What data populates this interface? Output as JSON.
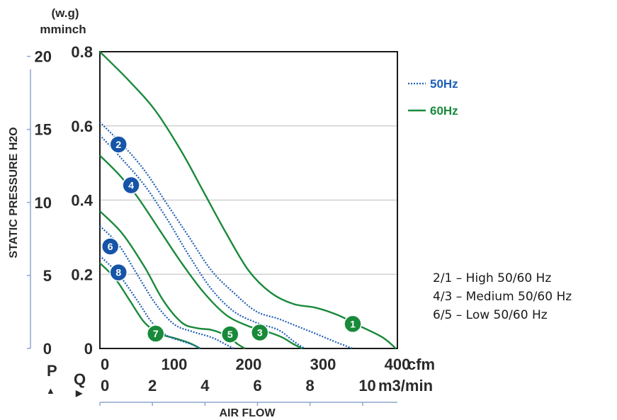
{
  "colors": {
    "hz50": "#1f5fb6",
    "hz60": "#1a8a3c",
    "badge50": "#1654a8",
    "badge60": "#188a3a",
    "grid": "#c8c8c8",
    "axis": "#8ea6cc"
  },
  "legend": {
    "hz50": "50Hz",
    "hz60": "60Hz"
  },
  "notes": [
    "2/1 – High 50/60 Hz",
    "4/3 – Medium 50/60 Hz",
    "6/5 – Low 50/60 Hz"
  ],
  "labels": {
    "unit_wg": "(w.g)",
    "unit_mminch": "mminch",
    "y_title": "STATIC PRESSURE H2O",
    "x_title": "AIR FLOW",
    "p_label": "P",
    "q_label": "Q",
    "cfm_unit": "cfm",
    "m3_unit": "m3/min",
    "arrow_up": "▲",
    "arrow_right": "▶"
  },
  "chart_data": {
    "type": "line",
    "xlabel": "AIR FLOW",
    "ylabel": "STATIC PRESSURE H2O",
    "xlim": [
      0,
      400
    ],
    "ylim": [
      0,
      0.8
    ],
    "grid": true,
    "legend_position": "right",
    "x_ticks_cfm": [
      "0",
      "100",
      "200",
      "300",
      "400"
    ],
    "x_ticks_m3min": [
      "0",
      "2",
      "4",
      "6",
      "8",
      "10"
    ],
    "y_ticks_inch": [
      "0",
      "0.2",
      "0.4",
      "0.6",
      "0.8"
    ],
    "y_ticks_mm": [
      "0",
      "5",
      "10",
      "15",
      "20"
    ],
    "series": [
      {
        "name": "1",
        "group": "60Hz",
        "label_at": [
          340,
          0.066
        ],
        "x": [
          0,
          40,
          75,
          110,
          140,
          170,
          200,
          230,
          260,
          290,
          320,
          350,
          380,
          398
        ],
        "y": [
          0.8,
          0.72,
          0.64,
          0.53,
          0.42,
          0.31,
          0.21,
          0.15,
          0.12,
          0.11,
          0.09,
          0.06,
          0.03,
          0.0
        ]
      },
      {
        "name": "2",
        "group": "50Hz",
        "label_at": [
          25,
          0.55
        ],
        "x": [
          0,
          30,
          60,
          90,
          120,
          150,
          180,
          210,
          240,
          265,
          290,
          320,
          340
        ],
        "y": [
          0.61,
          0.55,
          0.48,
          0.39,
          0.3,
          0.21,
          0.15,
          0.1,
          0.08,
          0.06,
          0.04,
          0.015,
          0.0
        ]
      },
      {
        "name": "3",
        "group": "60Hz",
        "label_at": [
          215,
          0.043
        ],
        "x": [
          0,
          25,
          50,
          80,
          110,
          140,
          170,
          200,
          225,
          245,
          260,
          272
        ],
        "y": [
          0.52,
          0.47,
          0.41,
          0.32,
          0.23,
          0.15,
          0.09,
          0.06,
          0.045,
          0.03,
          0.012,
          0.0
        ]
      },
      {
        "name": "4",
        "group": "50Hz",
        "label_at": [
          42,
          0.44
        ],
        "x": [
          0,
          30,
          60,
          90,
          120,
          150,
          180,
          210,
          240,
          260,
          275
        ],
        "y": [
          0.575,
          0.51,
          0.44,
          0.35,
          0.25,
          0.16,
          0.1,
          0.07,
          0.05,
          0.02,
          0.0
        ]
      },
      {
        "name": "5",
        "group": "60Hz",
        "label_at": [
          175,
          0.038
        ],
        "x": [
          0,
          30,
          60,
          85,
          110,
          130,
          150,
          170,
          185,
          195
        ],
        "y": [
          0.37,
          0.31,
          0.22,
          0.13,
          0.07,
          0.055,
          0.05,
          0.035,
          0.012,
          0.0
        ]
      },
      {
        "name": "6",
        "group": "50Hz",
        "label_at": [
          14,
          0.275
        ],
        "x": [
          0,
          25,
          50,
          75,
          100,
          125,
          150,
          170,
          180
        ],
        "y": [
          0.33,
          0.28,
          0.2,
          0.12,
          0.065,
          0.045,
          0.03,
          0.01,
          0.0
        ]
      },
      {
        "name": "7",
        "group": "60Hz",
        "label_at": [
          75,
          0.04
        ],
        "x": [
          0,
          20,
          40,
          60,
          80,
          100,
          120,
          135
        ],
        "y": [
          0.23,
          0.19,
          0.13,
          0.07,
          0.04,
          0.028,
          0.015,
          0.0
        ]
      },
      {
        "name": "8",
        "group": "50Hz",
        "label_at": [
          25,
          0.205
        ],
        "x": [
          0,
          25,
          50,
          70,
          90,
          110,
          125,
          135
        ],
        "y": [
          0.25,
          0.2,
          0.13,
          0.07,
          0.035,
          0.02,
          0.01,
          0.0
        ]
      }
    ]
  }
}
